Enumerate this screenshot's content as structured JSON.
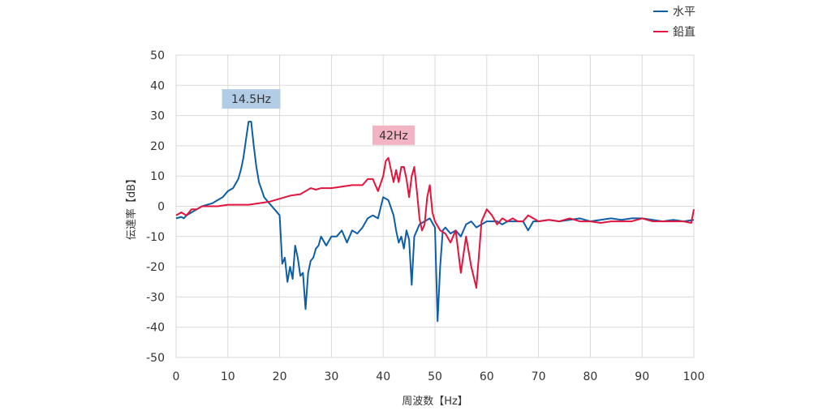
{
  "chart_data": {
    "type": "line",
    "title": "",
    "xlabel": "周波数【Hz】",
    "ylabel": "伝達率【dB】",
    "xlim": [
      0,
      100
    ],
    "ylim": [
      -50,
      50
    ],
    "xticks": [
      "0",
      "10",
      "20",
      "30",
      "40",
      "50",
      "60",
      "70",
      "80",
      "90",
      "100"
    ],
    "yticks": [
      "50",
      "40",
      "30",
      "20",
      "10",
      "0",
      "-10",
      "-20",
      "-30",
      "-40",
      "-50"
    ],
    "grid": true,
    "legend_position": "top-right",
    "annotations": [
      {
        "text": "14.5Hz",
        "series": "水平",
        "x": 14.5,
        "y": 28
      },
      {
        "text": "42Hz",
        "series": "鉛直",
        "x": 42,
        "y": 16
      }
    ],
    "series": [
      {
        "name": "水平",
        "color": "#0e5ea5",
        "x": [
          0,
          1,
          1.5,
          2,
          3,
          4,
          5,
          6,
          7,
          8,
          9,
          10,
          11,
          12,
          12.5,
          13,
          13.5,
          14,
          14.5,
          15,
          15.5,
          16,
          17,
          18,
          19,
          20,
          20.5,
          21,
          21.5,
          22,
          22.5,
          23,
          23.5,
          24,
          24.5,
          25,
          25.5,
          26,
          26.5,
          27,
          27.5,
          28,
          29,
          30,
          31,
          32,
          33,
          34,
          35,
          36,
          37,
          38,
          39,
          40,
          41,
          42,
          42.5,
          43,
          43.5,
          44,
          44.5,
          45,
          45.5,
          46,
          47,
          48,
          49,
          50,
          50.5,
          51,
          51.5,
          52,
          53,
          54,
          55,
          56,
          57,
          58,
          59,
          60,
          61,
          62,
          63,
          64,
          65,
          66,
          67,
          68,
          69,
          70,
          72,
          74,
          76,
          78,
          80,
          82,
          84,
          86,
          88,
          90,
          92,
          94,
          96,
          98,
          100
        ],
        "values": [
          -4,
          -3.5,
          -4,
          -3,
          -2,
          -1,
          0,
          0.5,
          1,
          2,
          3,
          5,
          6,
          9,
          12,
          16,
          22,
          28,
          28,
          20,
          13,
          8,
          3,
          1,
          -1,
          -3,
          -19,
          -17,
          -25,
          -20,
          -24,
          -13,
          -17,
          -23,
          -22,
          -34,
          -22,
          -18,
          -17,
          -14,
          -13,
          -10,
          -13,
          -10,
          -10,
          -8,
          -12,
          -8,
          -9,
          -7,
          -4,
          -3,
          -4,
          3,
          2,
          -3,
          -8,
          -12,
          -10,
          -14,
          -8,
          -11,
          -26,
          -10,
          -6,
          -5,
          -4,
          -7,
          -38,
          -20,
          -8,
          -7,
          -9,
          -8,
          -10,
          -6,
          -5,
          -7,
          -6,
          -5,
          -5,
          -5,
          -6,
          -5,
          -5,
          -5,
          -5,
          -8,
          -5,
          -5,
          -4.5,
          -5,
          -4.5,
          -4,
          -5,
          -4.5,
          -4,
          -4.5,
          -4,
          -4,
          -4.5,
          -5,
          -4.5,
          -5,
          -4.5
        ]
      },
      {
        "name": "鉛直",
        "color": "#e2143e",
        "x": [
          0,
          1,
          2,
          3,
          4,
          5,
          6,
          8,
          10,
          12,
          14,
          16,
          18,
          20,
          22,
          24,
          25,
          26,
          27,
          28,
          30,
          32,
          34,
          35,
          36,
          37,
          38,
          39,
          40,
          40.5,
          41,
          41.5,
          42,
          42.5,
          43,
          43.5,
          44,
          44.5,
          45,
          45.5,
          46,
          46.5,
          47,
          47.5,
          48,
          48.5,
          49,
          49.5,
          50,
          51,
          52,
          53,
          54,
          55,
          56,
          57,
          58,
          59,
          60,
          61,
          62,
          63,
          64,
          65,
          66,
          67,
          68,
          69,
          70,
          72,
          74,
          76,
          78,
          80,
          82,
          84,
          86,
          88,
          90,
          92,
          94,
          96,
          98,
          99.5,
          100
        ],
        "values": [
          -3,
          -2,
          -3,
          -1,
          -1,
          0,
          0,
          0,
          0.5,
          0.5,
          0.5,
          1,
          1.5,
          2.5,
          3.5,
          4,
          5,
          6,
          5.5,
          6,
          6,
          6.5,
          7,
          7,
          7,
          9,
          9,
          5,
          10,
          15,
          16,
          12,
          8,
          12,
          8,
          13,
          13,
          9,
          3,
          10,
          13,
          5,
          -4,
          -8,
          -6,
          3,
          7,
          -2,
          -5,
          -8,
          -9,
          -12,
          -8,
          -22,
          -10,
          -20,
          -27,
          -5,
          -1,
          -3,
          -6,
          -4,
          -5,
          -4,
          -5,
          -5,
          -3,
          -4,
          -5,
          -4.5,
          -5,
          -4,
          -5,
          -5,
          -5.5,
          -5,
          -5,
          -5,
          -4,
          -5,
          -5,
          -5,
          -5,
          -5.5,
          -1
        ]
      }
    ]
  }
}
